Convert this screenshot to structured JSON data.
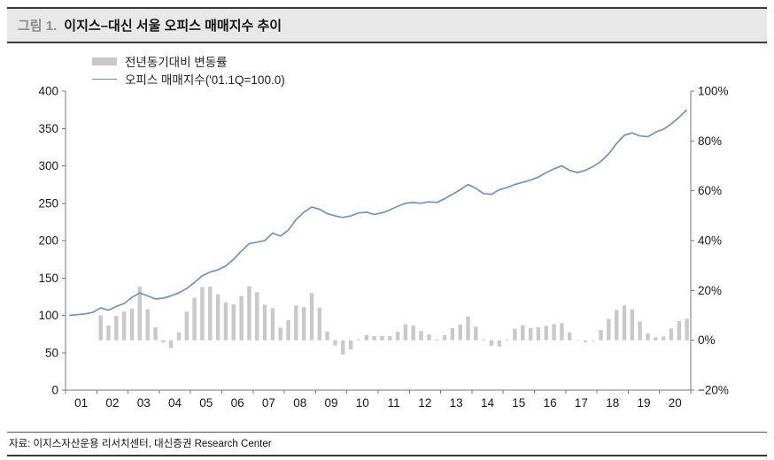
{
  "header": {
    "figure_label": "그림 1.",
    "title": "이지스–대신 서울 오피스 매매지수 추이"
  },
  "footer": {
    "source": "자료: 이지스자산운용 리서치센터, 대신증권 Research Center"
  },
  "chart_data": {
    "type": "bar",
    "subtype": "bar+line combo, quarterly series 2001Q1–2020Q4",
    "title": "이지스–대신 서울 오피스 매매지수 추이",
    "legend": [
      {
        "label": "전년동기대비 변동률",
        "type": "bar"
      },
      {
        "label": "오피스 매매지수('01.1Q=100.0)",
        "type": "line"
      }
    ],
    "legend_position": "top-left",
    "grid": false,
    "bar_color": "#c9c9c9",
    "line_color": "#7293c0",
    "x_years": [
      "01",
      "02",
      "03",
      "04",
      "05",
      "06",
      "07",
      "08",
      "09",
      "10",
      "11",
      "12",
      "13",
      "14",
      "15",
      "16",
      "17",
      "18",
      "19",
      "20"
    ],
    "line_axis": {
      "min": 0,
      "max": 400,
      "step": 50,
      "side": "left"
    },
    "bar_axis": {
      "min": -20,
      "max": 100,
      "step": 20,
      "suffix": "%",
      "side": "right"
    },
    "line_values": [
      100,
      101,
      102,
      104,
      110,
      107,
      112,
      116,
      124,
      130,
      126,
      122,
      123,
      126,
      130,
      136,
      144,
      153,
      158,
      161,
      166,
      175,
      186,
      196,
      198,
      200,
      210,
      206,
      214,
      228,
      238,
      245,
      242,
      236,
      233,
      231,
      233,
      237,
      238,
      235,
      237,
      241,
      246,
      250,
      251,
      250,
      252,
      251,
      256,
      262,
      268,
      275,
      270,
      263,
      262,
      268,
      271,
      275,
      278,
      281,
      285,
      291,
      296,
      300,
      294,
      291,
      294,
      299,
      306,
      316,
      330,
      341,
      344,
      340,
      339,
      345,
      349,
      356,
      365,
      375
    ],
    "bar_values": [
      null,
      null,
      null,
      null,
      10.0,
      5.9,
      9.8,
      11.5,
      12.7,
      21.5,
      12.5,
      5.2,
      -0.8,
      -3.1,
      3.2,
      11.5,
      17.1,
      21.4,
      21.5,
      18.4,
      15.3,
      14.4,
      17.7,
      21.7,
      19.3,
      14.3,
      12.9,
      5.1,
      8.1,
      14.0,
      13.3,
      18.9,
      13.1,
      3.5,
      -2.1,
      -5.7,
      -3.7,
      0.4,
      2.1,
      1.7,
      1.7,
      1.7,
      3.4,
      6.4,
      5.9,
      3.7,
      2.4,
      0.4,
      2.0,
      4.8,
      6.3,
      9.6,
      5.5,
      0.4,
      -2.2,
      -2.5,
      0.4,
      4.6,
      6.1,
      4.9,
      5.2,
      5.8,
      6.5,
      6.8,
      3.2,
      0.0,
      -0.7,
      -0.3,
      4.1,
      8.6,
      12.2,
      14.0,
      12.4,
      7.6,
      2.7,
      1.2,
      1.5,
      4.7,
      7.7,
      8.7
    ]
  }
}
